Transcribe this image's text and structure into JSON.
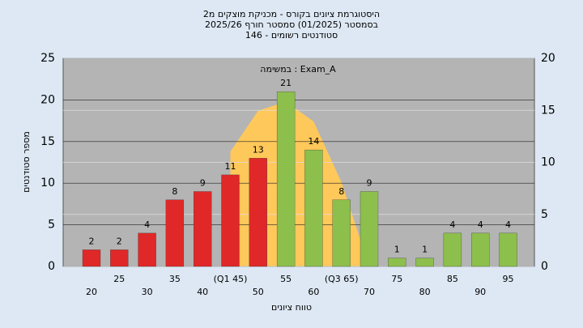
{
  "chart_data": {
    "type": "bar",
    "title": "היסטוגרמת ציונים בקורס - מכניקת מוצקים מ2",
    "subtitle": [
      "בסמסטר  (01/2025)  סמסטר חורף 2025/26",
      "סטודנטים רשומים - 146"
    ],
    "annotation": "במשימה : Exam_A",
    "x_label": "טווח ציונים",
    "y_label": "מספר סטודנטים",
    "categories": [
      "20",
      "25",
      "30",
      "35",
      "40",
      "(Q1 45)",
      "50",
      "55",
      "60",
      "(Q3 65)",
      "70",
      "75",
      "80",
      "85",
      "90",
      "95"
    ],
    "values": [
      2,
      2,
      4,
      8,
      9,
      11,
      13,
      21,
      14,
      8,
      9,
      1,
      1,
      4,
      4,
      4
    ],
    "colors": [
      "#e02828",
      "#e02828",
      "#e02828",
      "#e02828",
      "#e02828",
      "#e02828",
      "#e02828",
      "#8cbf4c",
      "#8cbf4c",
      "#8cbf4c",
      "#8cbf4c",
      "#8cbf4c",
      "#8cbf4c",
      "#8cbf4c",
      "#8cbf4c",
      "#8cbf4c"
    ],
    "curve": {
      "color": "#ffc85a",
      "values": [
        null,
        null,
        null,
        null,
        null,
        13.8,
        18.7,
        19.8,
        17.4,
        10.1,
        0,
        null,
        null,
        null,
        null,
        null
      ]
    },
    "ylim": [
      0,
      25
    ],
    "yticks": [
      0,
      5,
      10,
      15,
      20,
      25
    ],
    "y2lim": [
      0,
      20
    ],
    "y2ticks": [
      0,
      5,
      10,
      15,
      20
    ],
    "grid": true
  }
}
